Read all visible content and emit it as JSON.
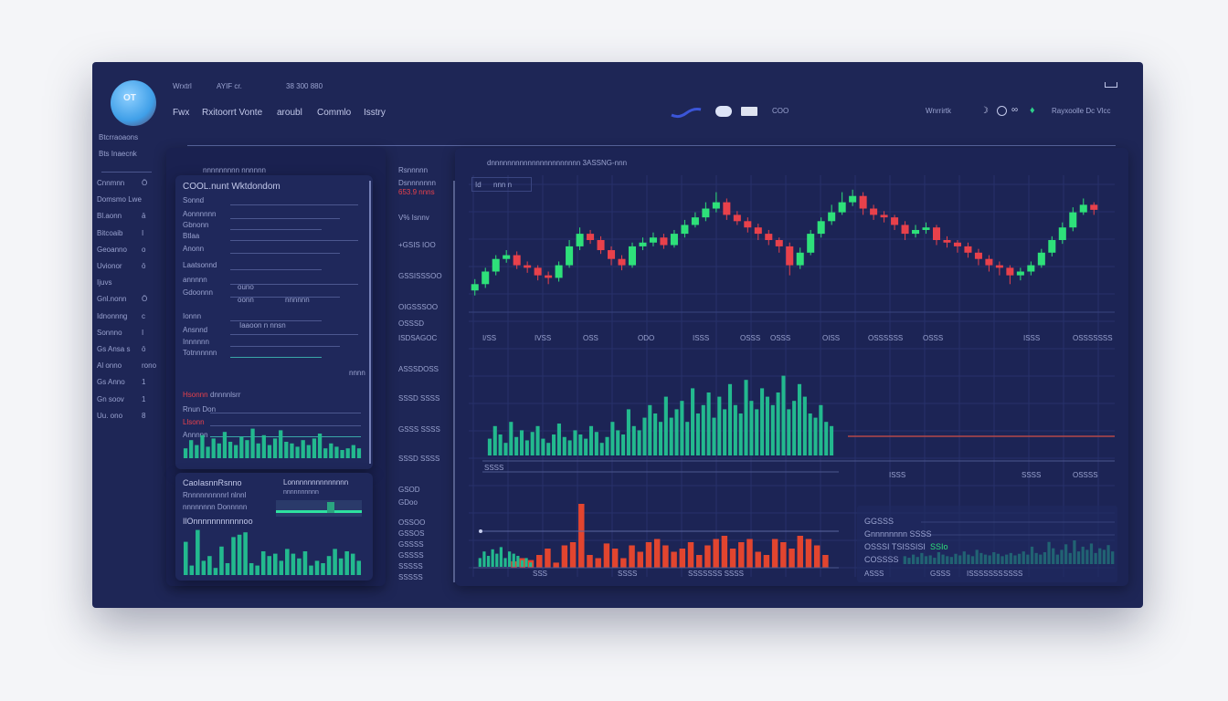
{
  "colors": {
    "bg": "#1e2656",
    "up": "#2ee07a",
    "down": "#e8414b",
    "volume": "#23b98e",
    "red_volume": "#e2452f"
  },
  "header": {
    "logo_text": "OT",
    "top_row": [
      "Wrxtrl",
      "AYIF cr.",
      "38 300 880"
    ],
    "nav": [
      "Fwx",
      "Rxitoorrt Vonte",
      "aroubl",
      "Commlo",
      "Isstry"
    ],
    "center_icons": [
      "wave-logo",
      "toggle",
      "badge",
      "COO"
    ],
    "right": [
      "Wnrrirtk",
      "Rayxoolle Dc Vlcc"
    ]
  },
  "sidebar": {
    "heading": [
      "Btcrraoaons",
      "Bts Inaecnk"
    ],
    "items": [
      {
        "label": "Cnnmnn",
        "sym": "Ö"
      },
      {
        "label": "Domsmo Lwe",
        "sym": ""
      },
      {
        "label": "Bl.aonn",
        "sym": "ā"
      },
      {
        "label": "Bitcoaib",
        "sym": "I"
      },
      {
        "label": "Geoanno",
        "sym": "o"
      },
      {
        "label": "Uvionor",
        "sym": "ō"
      },
      {
        "label": "Ijuvs",
        "sym": ""
      },
      {
        "label": "Gnl.nonn",
        "sym": "Ö"
      },
      {
        "label": "Idnonnng",
        "sym": "c"
      },
      {
        "label": "Sonnno",
        "sym": "I"
      },
      {
        "label": "Gs Ansa s",
        "sym": "ō"
      },
      {
        "label": "Al onno",
        "sym": "rono"
      },
      {
        "label": "Gs Anno",
        "sym": "1"
      },
      {
        "label": "Gn soov",
        "sym": "1"
      },
      {
        "label": "Uu. ono",
        "sym": "8"
      }
    ]
  },
  "left_panel": {
    "top_caption": "nnnnnnnnn nnnnnn",
    "title": "COOL.nunt Wktdondom",
    "rows": [
      "Sonnd",
      "Aonnnnnn",
      "Gbnonn",
      "Btlaa",
      "Anonn",
      "Laatsonnd",
      "annnnn",
      "Gdoonnn",
      "Ionnn",
      "Ansnnd",
      "Innnnnn",
      "Totnnnnnn"
    ],
    "row_values": [
      "ouno",
      "oonn",
      "nnnnnn",
      "Iaaoon n nnsn"
    ],
    "alert_label": "Hsonnn",
    "alert_text": "dnnnnlsrr",
    "alert_rows": [
      "Rnun Don",
      "Llsonn",
      "Annnnn"
    ],
    "side_value": "nnnn",
    "bottom_title": "CaoIasnnRsnno",
    "bottom_rows": [
      "Rnnnnnnnnnrl nlnnl",
      "nnnnnnnn  Donnnnn",
      "IlOnnnnnnnnnnnoo"
    ],
    "bottom_right_title": "Lonnnnnnnnnnnnnn",
    "bottom_right_sub": "nnnnnnnnnn",
    "volume_small": [
      30,
      55,
      40,
      70,
      35,
      60,
      45,
      80,
      50,
      40,
      65,
      55,
      90,
      45,
      70,
      40,
      60,
      85,
      50,
      45,
      35,
      55,
      40,
      60,
      75,
      30,
      45,
      35,
      25,
      30,
      40,
      30
    ],
    "volume_bottom": [
      70,
      20,
      95,
      30,
      40,
      15,
      60,
      25,
      80,
      85,
      90,
      25,
      20,
      50,
      40,
      45,
      30,
      55,
      45,
      35,
      50,
      20,
      30,
      25,
      40,
      55,
      35,
      50,
      45,
      30
    ]
  },
  "middle_labels": [
    "Rsnnnnn",
    "Dsnnnnnnn",
    "653.9 nnns",
    "V% Isnnv",
    "+GSIS IOO",
    "GSSISSSOO",
    "OIGSSSOO",
    "OSSSD",
    "ISDSAGOC",
    "ASSSDOSS",
    "SSSD SSSS",
    "GSSS SSSS",
    "SSSD SSSS",
    "GSOD",
    "GDoo",
    "OSSOO",
    "GSSOS",
    "GSSSS",
    "GSSSS",
    "SSSSS",
    "SSSSS"
  ],
  "main": {
    "title": "dnnnnnnnnnnnnnnnnnnnnnn 3ASSNG-nnn",
    "toolbar": [
      "Id",
      "nnn  n"
    ],
    "x_ticks": [
      "I/SS",
      "IVSS",
      "OSS",
      "ODO",
      "ISSS",
      "OSSS",
      "OSSS",
      "OISS",
      "OSSSSSS",
      "OSSS",
      "ISSS",
      "OSSSSSSS"
    ],
    "vol_label": "SSSS",
    "vol_ticks": [
      "ISSS",
      "SSSS",
      "OSSSS"
    ],
    "red_ticks": [
      "SSS",
      "SSSS",
      "SSSSSSS  SSSS"
    ],
    "info_rows": [
      "GGSSS",
      "Gnnnnnnnn SSSS",
      "OSSSI  TSISSISI",
      "COSSSS"
    ],
    "info_badge": "SSIo",
    "info_footer": [
      "ASSS",
      "GSSS",
      "ISSSSSSS",
      "SSSS"
    ],
    "candles": [
      [
        10,
        15,
        19,
        6
      ],
      [
        15,
        25,
        28,
        12
      ],
      [
        25,
        35,
        38,
        22
      ],
      [
        35,
        38,
        42,
        32
      ],
      [
        38,
        30,
        41,
        27
      ],
      [
        30,
        28,
        33,
        24
      ],
      [
        28,
        22,
        30,
        18
      ],
      [
        22,
        20,
        25,
        15
      ],
      [
        20,
        30,
        33,
        17
      ],
      [
        30,
        45,
        50,
        28
      ],
      [
        45,
        55,
        60,
        42
      ],
      [
        55,
        50,
        58,
        47
      ],
      [
        50,
        42,
        53,
        39
      ],
      [
        42,
        35,
        45,
        30
      ],
      [
        35,
        30,
        38,
        26
      ],
      [
        30,
        45,
        48,
        28
      ],
      [
        45,
        48,
        52,
        42
      ],
      [
        48,
        52,
        56,
        45
      ],
      [
        52,
        46,
        55,
        43
      ],
      [
        46,
        55,
        58,
        44
      ],
      [
        55,
        62,
        66,
        52
      ],
      [
        62,
        68,
        72,
        60
      ],
      [
        68,
        75,
        80,
        65
      ],
      [
        75,
        80,
        88,
        72
      ],
      [
        80,
        70,
        83,
        66
      ],
      [
        70,
        65,
        73,
        62
      ],
      [
        65,
        60,
        68,
        56
      ],
      [
        60,
        55,
        63,
        50
      ],
      [
        55,
        50,
        58,
        46
      ],
      [
        50,
        45,
        52,
        40
      ],
      [
        45,
        30,
        48,
        22
      ],
      [
        30,
        40,
        44,
        27
      ],
      [
        40,
        55,
        58,
        38
      ],
      [
        55,
        65,
        68,
        52
      ],
      [
        65,
        72,
        78,
        62
      ],
      [
        72,
        80,
        88,
        70
      ],
      [
        80,
        85,
        90,
        77
      ],
      [
        85,
        75,
        88,
        70
      ],
      [
        75,
        70,
        78,
        66
      ],
      [
        70,
        68,
        73,
        64
      ],
      [
        68,
        62,
        70,
        58
      ],
      [
        62,
        55,
        65,
        50
      ],
      [
        55,
        58,
        62,
        52
      ],
      [
        58,
        60,
        64,
        55
      ],
      [
        60,
        50,
        62,
        46
      ],
      [
        50,
        48,
        53,
        44
      ],
      [
        48,
        45,
        50,
        40
      ],
      [
        45,
        40,
        48,
        36
      ],
      [
        40,
        35,
        43,
        30
      ],
      [
        35,
        30,
        38,
        25
      ],
      [
        30,
        28,
        33,
        22
      ],
      [
        28,
        22,
        30,
        15
      ],
      [
        22,
        25,
        28,
        18
      ],
      [
        25,
        30,
        33,
        22
      ],
      [
        30,
        40,
        43,
        28
      ],
      [
        40,
        50,
        53,
        37
      ],
      [
        50,
        60,
        64,
        47
      ],
      [
        60,
        72,
        76,
        57
      ],
      [
        72,
        78,
        83,
        70
      ],
      [
        78,
        74,
        80,
        70
      ]
    ],
    "volume": [
      20,
      35,
      25,
      15,
      40,
      22,
      30,
      18,
      28,
      35,
      20,
      15,
      25,
      38,
      22,
      18,
      30,
      25,
      20,
      35,
      28,
      15,
      22,
      40,
      30,
      25,
      55,
      35,
      30,
      45,
      60,
      50,
      40,
      70,
      45,
      55,
      65,
      40,
      80,
      50,
      60,
      75,
      45,
      70,
      55,
      85,
      60,
      50,
      90,
      65,
      55,
      80,
      70,
      60,
      75,
      95,
      55,
      65,
      85,
      70,
      50,
      45,
      60,
      40,
      35
    ],
    "red_volume": [
      10,
      15,
      12,
      20,
      30,
      8,
      35,
      40,
      100,
      20,
      15,
      38,
      30,
      15,
      35,
      25,
      40,
      45,
      35,
      25,
      30,
      40,
      20,
      35,
      45,
      50,
      30,
      40,
      45,
      25,
      20,
      45,
      40,
      30,
      50,
      45,
      35,
      20
    ],
    "mini_volume": [
      10,
      8,
      12,
      9,
      14,
      10,
      11,
      8,
      15,
      12,
      10,
      9,
      13,
      11,
      16,
      12,
      10,
      18,
      14,
      12,
      11,
      15,
      13,
      10,
      12,
      14,
      11,
      13,
      16,
      12,
      22,
      14,
      12,
      15,
      28,
      20,
      12,
      18,
      25,
      14,
      30,
      16,
      22,
      18,
      26,
      14,
      20,
      18,
      24,
      16
    ]
  }
}
